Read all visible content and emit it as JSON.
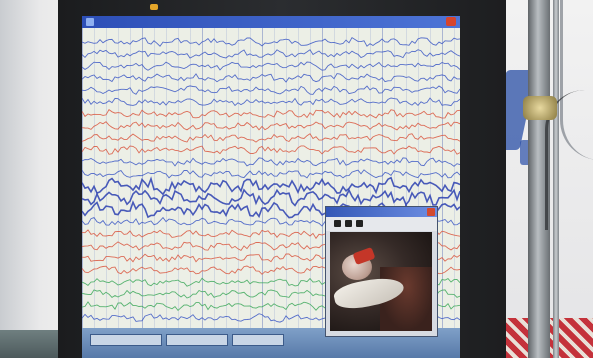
{
  "scene": {
    "description_type": "photo",
    "monitor": {
      "brand": "",
      "window_title_segments": [
        "",
        "",
        "",
        ""
      ]
    },
    "eeg_window": {
      "trace_colors": [
        "#3b57c4",
        "#d9553d",
        "#3da85a",
        "#2b3fb0"
      ]
    },
    "video_window": {
      "title": "",
      "toolbar_icons": [
        "record-icon",
        "play-icon",
        "camera-icon"
      ]
    }
  }
}
